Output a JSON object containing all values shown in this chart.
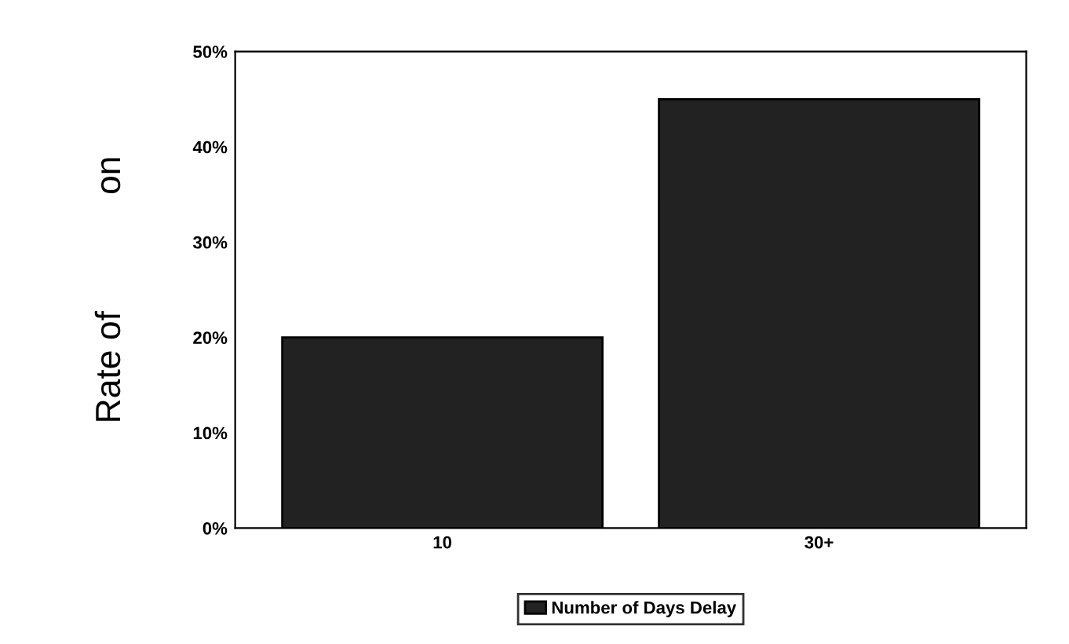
{
  "chart_data": {
    "type": "bar",
    "categories": [
      "10",
      "30+"
    ],
    "series": [
      {
        "name": "Number of Days Delay",
        "color": "#222222",
        "values": [
          20,
          45
        ]
      }
    ],
    "ylabel": "Rate of            on",
    "ylim": [
      0,
      50
    ],
    "yticks": [
      {
        "value": 0,
        "label": "0%"
      },
      {
        "value": 10,
        "label": "10%"
      },
      {
        "value": 20,
        "label": "20%"
      },
      {
        "value": 30,
        "label": "30%"
      },
      {
        "value": 40,
        "label": "40%"
      },
      {
        "value": 50,
        "label": "50%"
      }
    ],
    "grid": false,
    "legend": "bottom"
  }
}
